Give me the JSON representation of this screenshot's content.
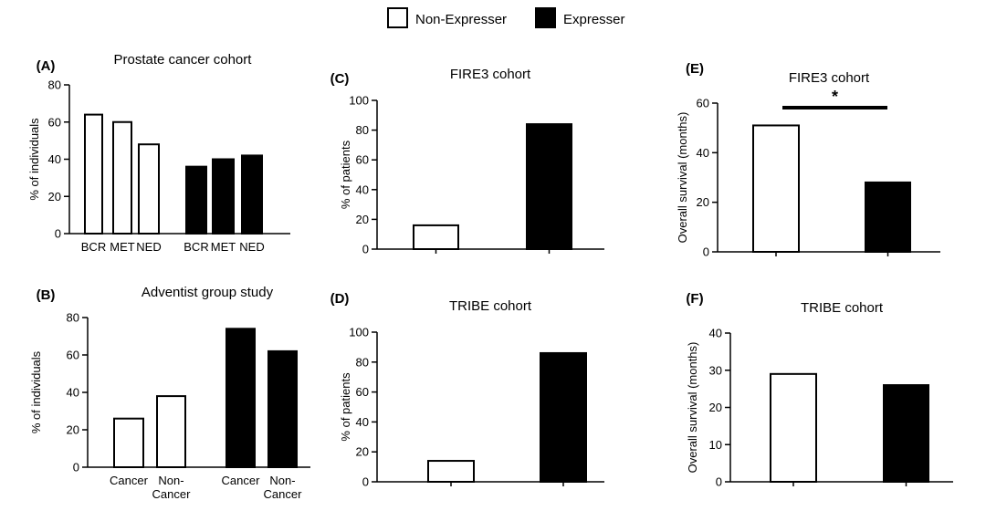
{
  "legend": {
    "items": [
      {
        "label": "Non-Expresser",
        "swatch": "white"
      },
      {
        "label": "Expresser",
        "swatch": "black"
      }
    ]
  },
  "colors": {
    "non_expresser": "#ffffff",
    "expresser": "#000000",
    "stroke": "#000000"
  },
  "chart_data": [
    {
      "id": "A",
      "panel_label": "(A)",
      "type": "bar",
      "title": "Prostate cancer cohort",
      "ylabel": "% of individuals",
      "xlabel": "",
      "ylim": [
        0,
        80
      ],
      "yticks": [
        0,
        20,
        40,
        60,
        80
      ],
      "categories": [
        "BCR",
        "MET",
        "NED"
      ],
      "series": [
        {
          "name": "Non-Expresser",
          "values": [
            64,
            60,
            48
          ]
        },
        {
          "name": "Expresser",
          "values": [
            36,
            40,
            42
          ]
        }
      ]
    },
    {
      "id": "B",
      "panel_label": "(B)",
      "type": "bar",
      "title": "Adventist group study",
      "ylabel": "% of individuals",
      "xlabel": "",
      "ylim": [
        0,
        80
      ],
      "yticks": [
        0,
        20,
        40,
        60,
        80
      ],
      "categories": [
        "Cancer",
        "Non-\nCancer"
      ],
      "series": [
        {
          "name": "Non-Expresser",
          "values": [
            26,
            38
          ]
        },
        {
          "name": "Expresser",
          "values": [
            74,
            62
          ]
        }
      ]
    },
    {
      "id": "C",
      "panel_label": "(C)",
      "type": "bar",
      "title": "FIRE3 cohort",
      "ylabel": "% of patients",
      "xlabel": "",
      "ylim": [
        0,
        100
      ],
      "yticks": [
        0,
        20,
        40,
        60,
        80,
        100
      ],
      "categories": [
        "Non-Expresser",
        "Expresser"
      ],
      "values": [
        16,
        84
      ]
    },
    {
      "id": "D",
      "panel_label": "(D)",
      "type": "bar",
      "title": "TRIBE cohort",
      "ylabel": "% of patients",
      "xlabel": "",
      "ylim": [
        0,
        100
      ],
      "yticks": [
        0,
        20,
        40,
        60,
        80,
        100
      ],
      "categories": [
        "Non-Expresser",
        "Expresser"
      ],
      "values": [
        14,
        86
      ]
    },
    {
      "id": "E",
      "panel_label": "(E)",
      "type": "bar",
      "title": "FIRE3 cohort",
      "ylabel": "Overall survival (months)",
      "xlabel": "",
      "ylim": [
        0,
        60
      ],
      "yticks": [
        0,
        20,
        40,
        60
      ],
      "categories": [
        "Non-Expresser",
        "Expresser"
      ],
      "values": [
        51,
        28
      ],
      "annotation": "*"
    },
    {
      "id": "F",
      "panel_label": "(F)",
      "type": "bar",
      "title": "TRIBE cohort",
      "ylabel": "Overall survival (months)",
      "xlabel": "",
      "ylim": [
        0,
        40
      ],
      "yticks": [
        0,
        10,
        20,
        30,
        40
      ],
      "categories": [
        "Non-Expresser",
        "Expresser"
      ],
      "values": [
        29,
        26
      ]
    }
  ]
}
